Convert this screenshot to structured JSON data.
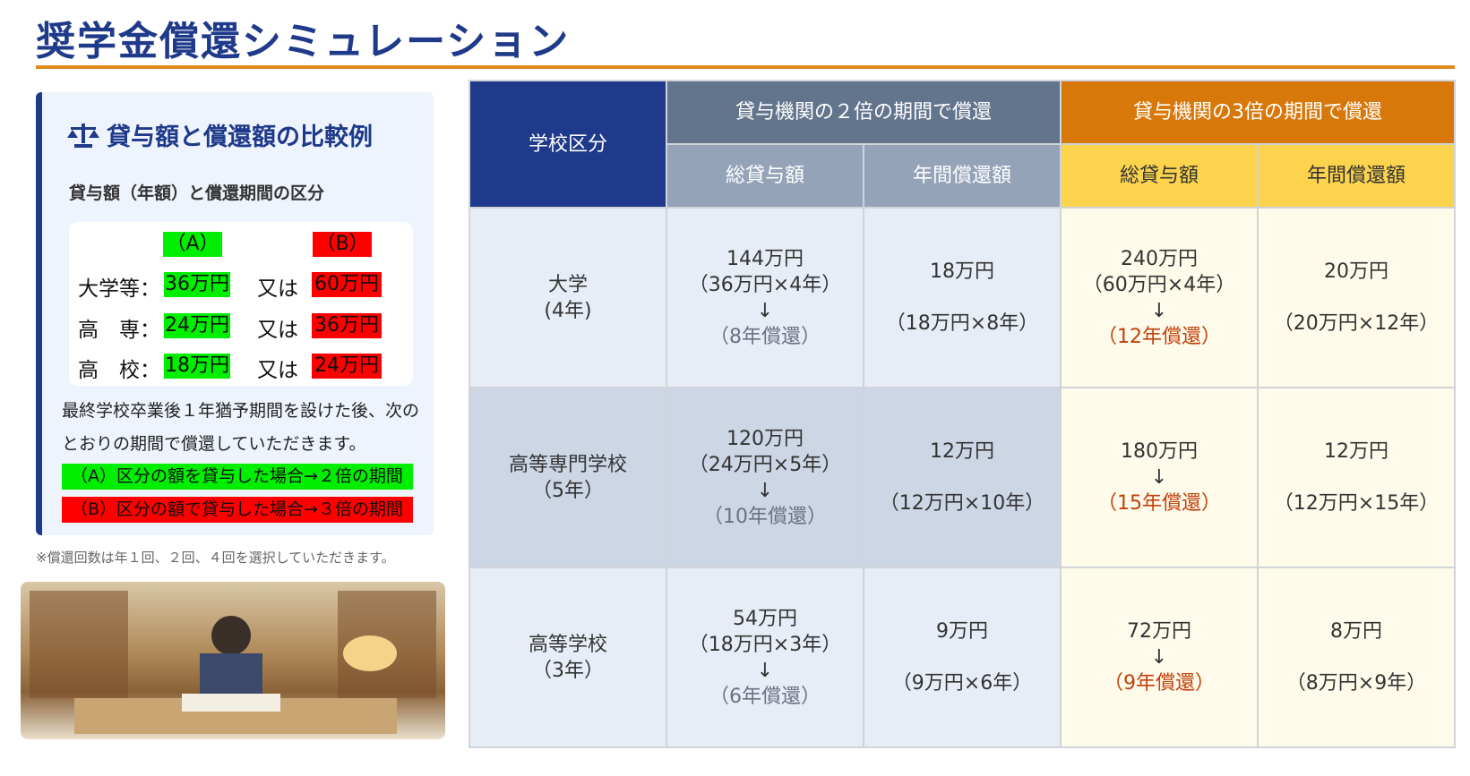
{
  "title": "奨学金償還シミュレーション",
  "panel": {
    "heading": "貸与額と償還額の比較例",
    "heading_icon": "scale-icon",
    "subheading": "貸与額（年額）と償還期間の区分",
    "col_a": "（A）",
    "col_b": "（B）",
    "rows": [
      {
        "label": "大学等：",
        "a": "36万円",
        "or": "又は",
        "b": "60万円"
      },
      {
        "label": "高　専：",
        "a": "24万円",
        "or": "又は",
        "b": "36万円"
      },
      {
        "label": "高　校：",
        "a": "18万円",
        "or": "又は",
        "b": "24万円"
      }
    ],
    "paragraph": "最終学校卒業後１年猶予期間を設けた後、次のとおりの期間で償還していただきます。",
    "rule_a": "（A）区分の額を貸与した場合→２倍の期間",
    "rule_b": "（B）区分の額で貸与した場合→３倍の期間",
    "colors": {
      "a": "#00ee00",
      "b": "#ff0000"
    }
  },
  "note": "※償還回数は年１回、２回、４回を選択していただきます。",
  "table": {
    "h_school": "学校区分",
    "h_group1": "貸与機関の２倍の期間で償還",
    "h_group2": "貸与機関の3倍の期間で償還",
    "h_total": "総貸与額",
    "h_annual": "年間償還額",
    "rows": [
      {
        "school": "大学",
        "years": "(4年)",
        "t1": "144万円",
        "t1d": "（36万円×4年）",
        "p1": "（8年償還）",
        "a1": "18万円",
        "a1d": "（18万円×8年）",
        "t2": "240万円",
        "t2d": "（60万円×4年）",
        "p2": "（12年償還）",
        "a2": "20万円",
        "a2d": "（20万円×12年）"
      },
      {
        "school": "高等専門学校",
        "years": "（5年）",
        "t1": "120万円",
        "t1d": "（24万円×5年）",
        "p1": "（10年償還）",
        "a1": "12万円",
        "a1d": "（12万円×10年）",
        "t2": "180万円",
        "t2d": "",
        "p2": "（15年償還）",
        "a2": "12万円",
        "a2d": "（12万円×15年）"
      },
      {
        "school": "高等学校",
        "years": "（3年）",
        "t1": "54万円",
        "t1d": "（18万円×3年）",
        "p1": "（6年償還）",
        "a1": "9万円",
        "a1d": "（9万円×6年）",
        "t2": "72万円",
        "t2d": "",
        "p2": "（9年償還）",
        "a2": "8万円",
        "a2d": "（8万円×9年）"
      }
    ],
    "arrow": "↓"
  }
}
